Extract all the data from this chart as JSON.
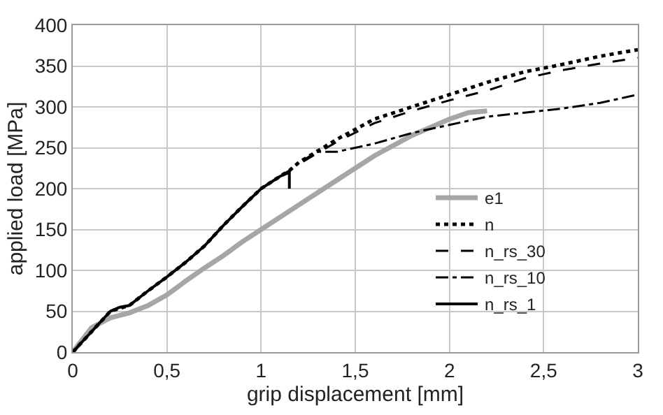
{
  "chart_data": {
    "type": "line",
    "xlabel": "grip displacement [mm]",
    "ylabel": "applied load [MPa]",
    "xlim": [
      0,
      3
    ],
    "ylim": [
      0,
      400
    ],
    "xticks": [
      0,
      {
        "value": 0.5,
        "label": "0,5"
      },
      1,
      {
        "value": 1.5,
        "label": "1,5"
      },
      2,
      {
        "value": 2.5,
        "label": "2,5"
      },
      3
    ],
    "yticks": [
      0,
      50,
      100,
      150,
      200,
      250,
      300,
      350,
      400
    ],
    "grid": true,
    "legend": "right",
    "marker": "none",
    "series": [
      {
        "name": "e1",
        "color": "#a6a6a6",
        "line_style": "solid",
        "x": [
          0,
          0.1,
          0.2,
          0.3,
          0.4,
          0.5,
          0.6,
          0.7,
          0.8,
          0.9,
          1.0,
          1.2,
          1.4,
          1.6,
          1.8,
          2.0,
          2.1,
          2.2
        ],
        "values": [
          0,
          30,
          42,
          48,
          57,
          70,
          87,
          103,
          118,
          135,
          150,
          180,
          210,
          240,
          265,
          285,
          293,
          295
        ]
      },
      {
        "name": "n",
        "color": "#000000",
        "line_style": "dotted",
        "x": [
          0,
          0.1,
          0.2,
          0.3,
          0.4,
          0.5,
          0.6,
          0.7,
          0.8,
          0.9,
          1.0,
          1.1,
          1.15,
          1.2,
          1.4,
          1.6,
          1.8,
          2.0,
          2.2,
          2.4,
          2.6,
          2.8,
          3.0
        ],
        "values": [
          0,
          25,
          50,
          57,
          75,
          92,
          110,
          130,
          155,
          178,
          200,
          215,
          222,
          232,
          260,
          285,
          300,
          315,
          330,
          343,
          352,
          362,
          370
        ]
      },
      {
        "name": "n_rs_30",
        "color": "#000000",
        "line_style": "dashed",
        "x": [
          0,
          0.1,
          0.2,
          0.3,
          0.4,
          0.5,
          0.6,
          0.7,
          0.8,
          0.9,
          1.0,
          1.1,
          1.15,
          1.2,
          1.4,
          1.6,
          1.8,
          2.0,
          2.2,
          2.4,
          2.6,
          2.8,
          3.0
        ],
        "values": [
          0,
          25,
          50,
          57,
          75,
          92,
          110,
          130,
          155,
          178,
          200,
          215,
          222,
          230,
          257,
          280,
          295,
          308,
          320,
          335,
          345,
          353,
          360
        ]
      },
      {
        "name": "n_rs_10",
        "color": "#000000",
        "line_style": "dashdot",
        "x": [
          0,
          0.1,
          0.2,
          0.3,
          0.4,
          0.5,
          0.6,
          0.7,
          0.8,
          0.9,
          1.0,
          1.1,
          1.15,
          1.2,
          1.3,
          1.4,
          1.5,
          1.6,
          1.8,
          2.0,
          2.2,
          2.4,
          2.6,
          2.8,
          3.0
        ],
        "values": [
          0,
          25,
          50,
          57,
          75,
          92,
          110,
          130,
          155,
          178,
          200,
          215,
          222,
          232,
          245,
          245,
          250,
          255,
          268,
          278,
          288,
          293,
          298,
          305,
          315
        ]
      },
      {
        "name": "n_rs_1",
        "color": "#000000",
        "line_style": "solid",
        "x": [
          0,
          0.1,
          0.2,
          0.25,
          0.3,
          0.4,
          0.5,
          0.6,
          0.7,
          0.8,
          0.9,
          1.0,
          1.1,
          1.15,
          1.15
        ],
        "values": [
          0,
          25,
          50,
          55,
          57,
          75,
          92,
          110,
          130,
          155,
          178,
          200,
          215,
          220,
          200
        ]
      }
    ]
  }
}
